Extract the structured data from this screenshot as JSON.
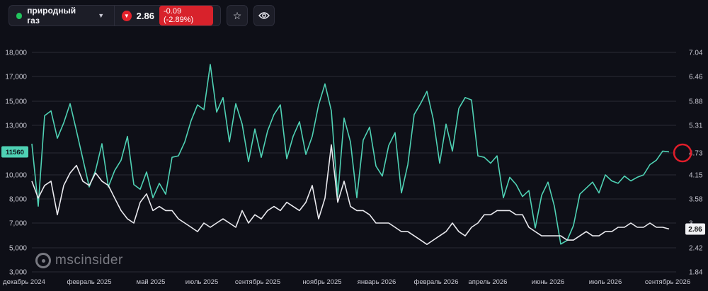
{
  "header": {
    "asset_name": "природный газ",
    "price": "2.86",
    "change": "-0.09 (-2.89%)"
  },
  "colors": {
    "teal": "#4fd1b4",
    "white_line": "#e9e9ee",
    "down": "#e5222b",
    "highlight": "#e11d2a"
  },
  "icons": [
    "status-dot-icon",
    "chevron-down-icon",
    "down-arrow-icon",
    "star-icon",
    "eye-icon",
    "msc-logo-icon"
  ],
  "watermark": "mscinsider",
  "chart_data": {
    "type": "line",
    "y_left": {
      "ticks": [
        "18,000",
        "17,000",
        "15,000",
        "13,000",
        "11,500",
        "10,000",
        "8,000",
        "7,000",
        "5,000",
        "3,000"
      ],
      "range": [
        3000,
        18000
      ]
    },
    "y_right": {
      "ticks": [
        "7.04",
        "6.46",
        "5.88",
        "5.31",
        "4.73",
        "4.15",
        "3.58",
        "3",
        "2.42",
        "1.84"
      ],
      "range": [
        1.84,
        7.04
      ]
    },
    "x_ticks": [
      "декабрь 2024",
      "февраль 2025",
      "май 2025",
      "июль 2025",
      "сентябрь 2025",
      "ноябрь 2025",
      "январь 2026",
      "февраль 2026",
      "апрель 2026",
      "июнь 2026",
      "июль 2026",
      "сентябрь 2026"
    ],
    "last_left_label": "11560",
    "last_right_label": "2.86",
    "series": [
      {
        "axis": "left",
        "color": "#4fd1b4",
        "x": [
          0,
          0.01,
          0.02,
          0.03,
          0.04,
          0.05,
          0.06,
          0.07,
          0.08,
          0.09,
          0.1,
          0.11,
          0.12,
          0.13,
          0.14,
          0.15,
          0.16,
          0.17,
          0.18,
          0.19,
          0.2,
          0.21,
          0.22,
          0.23,
          0.24,
          0.25,
          0.26,
          0.27,
          0.28,
          0.29,
          0.3,
          0.31,
          0.32,
          0.33,
          0.34,
          0.35,
          0.36,
          0.37,
          0.38,
          0.39,
          0.4,
          0.41,
          0.42,
          0.43,
          0.44,
          0.45,
          0.46,
          0.47,
          0.48,
          0.49,
          0.5,
          0.51,
          0.52,
          0.53,
          0.54,
          0.55,
          0.56,
          0.57,
          0.58,
          0.59,
          0.6,
          0.61,
          0.62,
          0.63,
          0.64,
          0.65,
          0.66,
          0.67,
          0.68,
          0.69,
          0.7,
          0.71,
          0.72,
          0.73,
          0.74,
          0.75,
          0.76,
          0.77,
          0.78,
          0.79,
          0.8,
          0.81,
          0.82,
          0.83,
          0.84,
          0.85,
          0.86,
          0.87,
          0.88,
          0.89,
          0.9,
          0.91,
          0.92,
          0.93,
          0.94,
          0.95,
          0.96,
          0.97,
          0.98,
          0.99,
          1.0
        ],
        "y": [
          12000,
          7700,
          13800,
          14200,
          12300,
          13200,
          14800,
          12700,
          11100,
          9000,
          10300,
          12000,
          9000,
          10300,
          11000,
          12400,
          9200,
          8800,
          10200,
          8100,
          9300,
          8400,
          11200,
          11300,
          12100,
          13400,
          14700,
          14300,
          17500,
          14100,
          15300,
          12100,
          14800,
          13100,
          10900,
          12800,
          11200,
          12700,
          13900,
          14700,
          11100,
          12400,
          13300,
          11400,
          12400,
          14700,
          16400,
          14200,
          8200,
          13600,
          12100,
          8100,
          12200,
          12900,
          10600,
          9900,
          11900,
          12600,
          8500,
          10700,
          13900,
          14800,
          15800,
          13500,
          10800,
          13100,
          11600,
          14400,
          15300,
          15100,
          11300,
          11200,
          10800,
          11300,
          8100,
          9800,
          9200,
          8200,
          8700,
          6600,
          8300,
          9400,
          7700,
          5300,
          5600,
          6800,
          8400,
          8900,
          9400,
          8500,
          10000,
          9500,
          9300,
          9900,
          9500,
          9800,
          10000,
          10700,
          11000,
          11600,
          11560
        ]
      },
      {
        "axis": "right",
        "color": "#e9e9ee",
        "x": [
          0,
          0.01,
          0.02,
          0.03,
          0.04,
          0.05,
          0.06,
          0.07,
          0.08,
          0.09,
          0.1,
          0.11,
          0.12,
          0.13,
          0.14,
          0.15,
          0.16,
          0.17,
          0.18,
          0.19,
          0.2,
          0.21,
          0.22,
          0.23,
          0.24,
          0.25,
          0.26,
          0.27,
          0.28,
          0.29,
          0.3,
          0.31,
          0.32,
          0.33,
          0.34,
          0.35,
          0.36,
          0.37,
          0.38,
          0.39,
          0.4,
          0.41,
          0.42,
          0.43,
          0.44,
          0.45,
          0.46,
          0.47,
          0.48,
          0.49,
          0.5,
          0.51,
          0.52,
          0.53,
          0.54,
          0.55,
          0.56,
          0.57,
          0.58,
          0.59,
          0.6,
          0.61,
          0.62,
          0.63,
          0.64,
          0.65,
          0.66,
          0.67,
          0.68,
          0.69,
          0.7,
          0.71,
          0.72,
          0.73,
          0.74,
          0.75,
          0.76,
          0.77,
          0.78,
          0.79,
          0.8,
          0.81,
          0.82,
          0.83,
          0.84,
          0.85,
          0.86,
          0.87,
          0.88,
          0.89,
          0.9,
          0.91,
          0.92,
          0.93,
          0.94,
          0.95,
          0.96,
          0.97,
          0.98,
          0.99,
          1.0
        ],
        "y": [
          4.0,
          3.6,
          3.9,
          4.0,
          3.2,
          3.9,
          4.2,
          4.4,
          4.0,
          3.9,
          4.2,
          4.0,
          3.9,
          3.6,
          3.3,
          3.1,
          3.0,
          3.5,
          3.7,
          3.3,
          3.4,
          3.3,
          3.3,
          3.1,
          3.0,
          2.9,
          2.8,
          3.0,
          2.9,
          3.0,
          3.1,
          3.0,
          2.9,
          3.3,
          3.0,
          3.2,
          3.1,
          3.3,
          3.4,
          3.3,
          3.5,
          3.4,
          3.3,
          3.5,
          3.9,
          3.1,
          3.6,
          4.9,
          3.5,
          4.0,
          3.4,
          3.3,
          3.3,
          3.2,
          3.0,
          3.0,
          3.0,
          2.9,
          2.8,
          2.8,
          2.7,
          2.6,
          2.5,
          2.6,
          2.7,
          2.8,
          3.0,
          2.8,
          2.7,
          2.9,
          3.0,
          3.2,
          3.2,
          3.3,
          3.3,
          3.3,
          3.2,
          3.2,
          2.9,
          2.8,
          2.7,
          2.7,
          2.7,
          2.7,
          2.6,
          2.6,
          2.7,
          2.8,
          2.7,
          2.7,
          2.8,
          2.8,
          2.9,
          2.9,
          3.0,
          2.9,
          2.9,
          3.0,
          2.9,
          2.9,
          2.86
        ]
      }
    ]
  }
}
